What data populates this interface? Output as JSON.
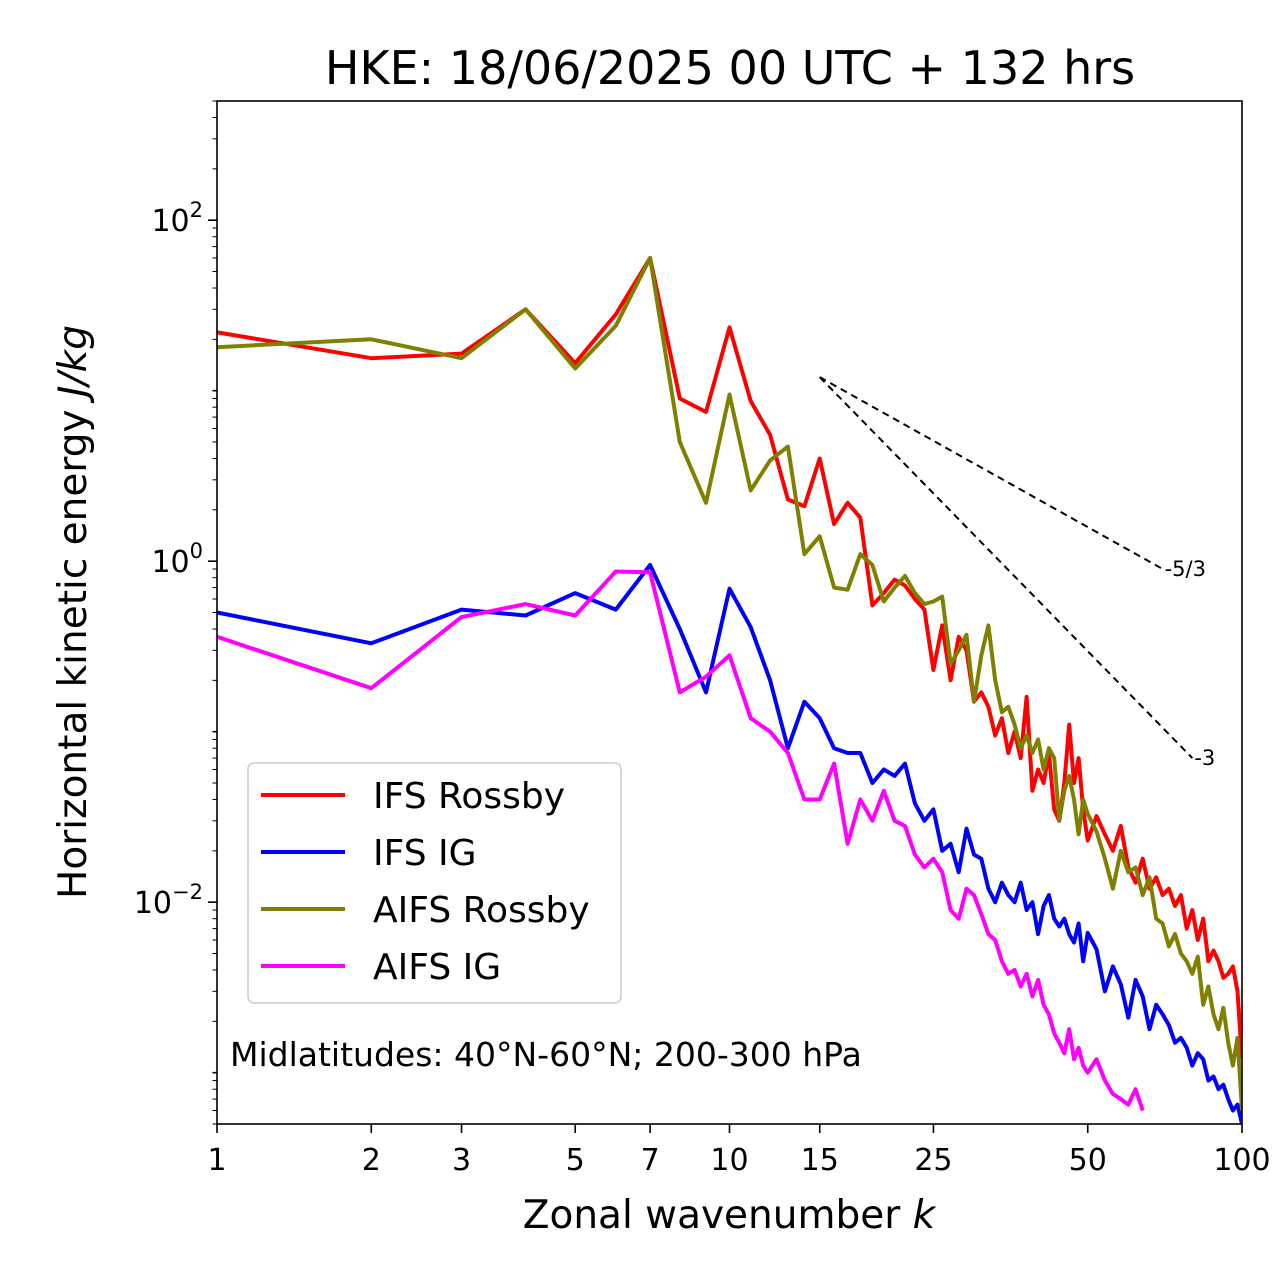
{
  "chart_data": {
    "type": "line",
    "title": "HKE: 18/06/2025 00 UTC + 132 hrs",
    "xlabel_prefix": "Zonal wavenumber ",
    "xlabel_var": "k",
    "ylabel_prefix": "Horizontal kinetic energy ",
    "ylabel_unit": "J/kg",
    "x_scale": "log",
    "y_scale": "log",
    "xlim": [
      1,
      100
    ],
    "ylim": [
      0.0005,
      500
    ],
    "x_ticks": [
      1,
      2,
      3,
      5,
      7,
      10,
      15,
      25,
      50,
      100
    ],
    "x_tick_labels": [
      "1",
      "2",
      "3",
      "5",
      "7",
      "10",
      "15",
      "25",
      "50",
      "100"
    ],
    "y_ticks": [
      {
        "value": 100,
        "base": "10",
        "exp": "2"
      },
      {
        "value": 1,
        "base": "10",
        "exp": "0"
      },
      {
        "value": 0.01,
        "base": "10",
        "exp": "−2"
      }
    ],
    "grid": false,
    "legend_position": "lower-left",
    "annotation": "Midlatitudes: 40°N-60°N; 200-300 hPa",
    "reference_lines": [
      {
        "label": "-5/3",
        "slope": -1.6667,
        "x": [
          15,
          70
        ],
        "y": [
          12,
          0.9
        ]
      },
      {
        "label": "-3",
        "slope": -3,
        "x": [
          15,
          80
        ],
        "y": [
          12,
          0.07
        ]
      }
    ],
    "series": [
      {
        "name": "IFS Rossby",
        "color": "#ff0000",
        "x": [
          1,
          2,
          3,
          4,
          5,
          6,
          7,
          8,
          9,
          10,
          11,
          12,
          13,
          14,
          15,
          16,
          17,
          18,
          19,
          20,
          21,
          22,
          23,
          24,
          25,
          26,
          27,
          28,
          29,
          30,
          31,
          32,
          33,
          34,
          35,
          36,
          37,
          38,
          39,
          40,
          41,
          42,
          43,
          44,
          45,
          46,
          47,
          48,
          49,
          50,
          52,
          54,
          56,
          58,
          60,
          62,
          64,
          66,
          68,
          70,
          72,
          74,
          76,
          78,
          80,
          82,
          84,
          86,
          88,
          90,
          92,
          94,
          96,
          98,
          100
        ],
        "y": [
          22,
          15.5,
          16.5,
          30,
          14.5,
          28,
          60,
          9,
          7.5,
          23.5,
          8.7,
          5.5,
          2.3,
          2.1,
          4,
          1.65,
          2.2,
          1.8,
          0.55,
          0.65,
          0.78,
          0.72,
          0.6,
          0.52,
          0.23,
          0.42,
          0.2,
          0.36,
          0.3,
          0.15,
          0.17,
          0.14,
          0.095,
          0.12,
          0.075,
          0.1,
          0.07,
          0.16,
          0.045,
          0.06,
          0.05,
          0.075,
          0.035,
          0.03,
          0.05,
          0.11,
          0.05,
          0.07,
          0.035,
          0.023,
          0.032,
          0.025,
          0.02,
          0.028,
          0.016,
          0.013,
          0.018,
          0.012,
          0.014,
          0.011,
          0.012,
          0.0095,
          0.011,
          0.007,
          0.009,
          0.006,
          0.008,
          0.0045,
          0.0052,
          0.0045,
          0.0036,
          0.0038,
          0.0042,
          0.003,
          0.0012
        ]
      },
      {
        "name": "IFS IG",
        "color": "#0000ff",
        "x": [
          1,
          2,
          3,
          4,
          5,
          6,
          7,
          8,
          9,
          10,
          11,
          12,
          13,
          14,
          15,
          16,
          17,
          18,
          19,
          20,
          21,
          22,
          23,
          24,
          25,
          26,
          27,
          28,
          29,
          30,
          31,
          32,
          33,
          34,
          35,
          36,
          37,
          38,
          39,
          40,
          41,
          42,
          43,
          44,
          45,
          46,
          47,
          48,
          49,
          50,
          52,
          54,
          56,
          58,
          60,
          62,
          64,
          66,
          68,
          70,
          72,
          74,
          76,
          78,
          80,
          82,
          84,
          86,
          88,
          90,
          92,
          94,
          96,
          98,
          100
        ],
        "y": [
          0.5,
          0.33,
          0.52,
          0.48,
          0.65,
          0.52,
          0.95,
          0.4,
          0.17,
          0.69,
          0.41,
          0.2,
          0.08,
          0.15,
          0.12,
          0.08,
          0.075,
          0.075,
          0.05,
          0.06,
          0.055,
          0.065,
          0.038,
          0.03,
          0.035,
          0.02,
          0.022,
          0.015,
          0.027,
          0.019,
          0.018,
          0.012,
          0.01,
          0.013,
          0.011,
          0.01,
          0.013,
          0.009,
          0.01,
          0.0065,
          0.0095,
          0.011,
          0.008,
          0.0072,
          0.008,
          0.0065,
          0.0058,
          0.0075,
          0.0045,
          0.0066,
          0.0053,
          0.003,
          0.0042,
          0.0033,
          0.0021,
          0.0035,
          0.0028,
          0.0018,
          0.0025,
          0.0022,
          0.0019,
          0.0015,
          0.0016,
          0.0014,
          0.0011,
          0.0013,
          0.0012,
          0.0009,
          0.00095,
          0.0008,
          0.00085,
          0.0007,
          0.0006,
          0.00065,
          0.0005
        ]
      },
      {
        "name": "AIFS Rossby",
        "color": "#808000",
        "x": [
          1,
          2,
          3,
          4,
          5,
          6,
          7,
          8,
          9,
          10,
          11,
          12,
          13,
          14,
          15,
          16,
          17,
          18,
          19,
          20,
          21,
          22,
          23,
          24,
          25,
          26,
          27,
          28,
          29,
          30,
          31,
          32,
          33,
          34,
          35,
          36,
          37,
          38,
          39,
          40,
          41,
          42,
          43,
          44,
          45,
          46,
          47,
          48,
          49,
          50,
          52,
          54,
          56,
          58,
          60,
          62,
          64,
          66,
          68,
          70,
          72,
          74,
          76,
          78,
          80,
          82,
          84,
          86,
          88,
          90,
          92,
          94,
          96,
          98,
          100
        ],
        "y": [
          18,
          20,
          15.5,
          30,
          13.5,
          24,
          60,
          5,
          2.2,
          9.5,
          2.6,
          3.9,
          4.7,
          1.1,
          1.4,
          0.7,
          0.68,
          1.1,
          0.95,
          0.58,
          0.7,
          0.82,
          0.65,
          0.56,
          0.58,
          0.62,
          0.25,
          0.3,
          0.37,
          0.15,
          0.28,
          0.42,
          0.2,
          0.13,
          0.14,
          0.11,
          0.08,
          0.095,
          0.075,
          0.09,
          0.06,
          0.08,
          0.07,
          0.03,
          0.045,
          0.055,
          0.04,
          0.025,
          0.04,
          0.033,
          0.026,
          0.018,
          0.012,
          0.02,
          0.015,
          0.016,
          0.011,
          0.014,
          0.008,
          0.0075,
          0.0055,
          0.0065,
          0.005,
          0.0045,
          0.0038,
          0.0048,
          0.0025,
          0.0032,
          0.0022,
          0.0018,
          0.0024,
          0.0015,
          0.0011,
          0.0016,
          0.0006
        ]
      },
      {
        "name": "AIFS IG",
        "color": "#ff00ff",
        "x": [
          1,
          2,
          3,
          4,
          5,
          6,
          7,
          8,
          9,
          10,
          11,
          12,
          13,
          14,
          15,
          16,
          17,
          18,
          19,
          20,
          21,
          22,
          23,
          24,
          25,
          26,
          27,
          28,
          29,
          30,
          31,
          32,
          33,
          34,
          35,
          36,
          37,
          38,
          39,
          40,
          41,
          42,
          43,
          44,
          45,
          46,
          47,
          48,
          49,
          50,
          52,
          54,
          56,
          58,
          60,
          62,
          64
        ],
        "y": [
          0.36,
          0.18,
          0.47,
          0.56,
          0.48,
          0.87,
          0.86,
          0.17,
          0.21,
          0.28,
          0.12,
          0.1,
          0.075,
          0.04,
          0.04,
          0.065,
          0.022,
          0.04,
          0.03,
          0.045,
          0.03,
          0.028,
          0.019,
          0.016,
          0.018,
          0.015,
          0.009,
          0.008,
          0.012,
          0.011,
          0.0085,
          0.0065,
          0.006,
          0.0045,
          0.0038,
          0.004,
          0.0032,
          0.0038,
          0.0028,
          0.0035,
          0.0025,
          0.0022,
          0.0017,
          0.0015,
          0.0013,
          0.0018,
          0.0012,
          0.0014,
          0.0011,
          0.001,
          0.0012,
          0.0009,
          0.00075,
          0.0007,
          0.00065,
          0.0008,
          0.0006
        ]
      }
    ]
  }
}
